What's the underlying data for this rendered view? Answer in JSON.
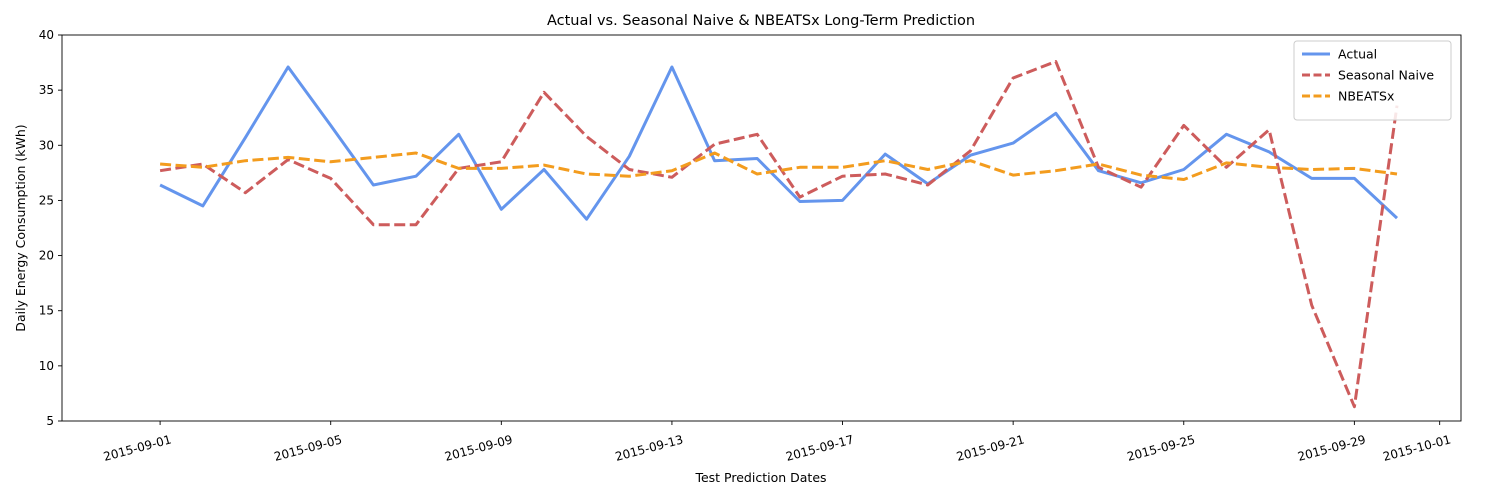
{
  "chart_data": {
    "type": "line",
    "title": "Actual vs. Seasonal Naive & NBEATSx Long-Term Prediction",
    "xlabel": "Test Prediction Dates",
    "ylabel": "Daily Energy Consumption (kWh)",
    "ylim": [
      5,
      40
    ],
    "yticks": [
      5,
      10,
      15,
      20,
      25,
      30,
      35,
      40
    ],
    "xlim": [
      "2015-08-29.7",
      "2015-10-01.5"
    ],
    "xticks": [
      "2015-09-01",
      "2015-09-05",
      "2015-09-09",
      "2015-09-13",
      "2015-09-17",
      "2015-09-21",
      "2015-09-25",
      "2015-09-29",
      "2015-10-01"
    ],
    "grid": false,
    "legend_position": "top-right",
    "x": [
      "2015-09-01",
      "2015-09-02",
      "2015-09-03",
      "2015-09-04",
      "2015-09-05",
      "2015-09-06",
      "2015-09-07",
      "2015-09-08",
      "2015-09-09",
      "2015-09-10",
      "2015-09-11",
      "2015-09-12",
      "2015-09-13",
      "2015-09-14",
      "2015-09-15",
      "2015-09-16",
      "2015-09-17",
      "2015-09-18",
      "2015-09-19",
      "2015-09-20",
      "2015-09-21",
      "2015-09-22",
      "2015-09-23",
      "2015-09-24",
      "2015-09-25",
      "2015-09-26",
      "2015-09-27",
      "2015-09-28",
      "2015-09-29",
      "2015-09-30"
    ],
    "series": [
      {
        "name": "Actual",
        "color": "#6495ED",
        "style": "solid",
        "values": [
          26.4,
          24.5,
          30.7,
          37.1,
          31.8,
          26.4,
          27.2,
          31.0,
          24.2,
          27.8,
          23.3,
          29.0,
          37.1,
          28.6,
          28.8,
          24.9,
          25.0,
          29.2,
          26.5,
          29.1,
          30.2,
          32.9,
          27.7,
          26.6,
          27.8,
          31.0,
          29.4,
          27.0,
          27.0,
          23.4
        ]
      },
      {
        "name": "Seasonal Naive",
        "color": "#CD5C5C",
        "style": "dashed",
        "values": [
          27.7,
          28.3,
          25.7,
          28.7,
          27.0,
          22.8,
          22.8,
          27.9,
          28.5,
          34.8,
          30.8,
          27.8,
          27.1,
          30.1,
          31.0,
          25.3,
          27.2,
          27.4,
          26.4,
          29.5,
          36.1,
          37.6,
          28.0,
          26.2,
          31.8,
          28.0,
          31.4,
          15.5,
          6.3,
          33.6
        ]
      },
      {
        "name": "NBEATSx",
        "color": "#F39C1E",
        "style": "dashed",
        "values": [
          28.3,
          28.0,
          28.6,
          28.9,
          28.5,
          28.9,
          29.3,
          27.9,
          27.9,
          28.2,
          27.4,
          27.2,
          27.7,
          29.3,
          27.4,
          28.0,
          28.0,
          28.6,
          27.8,
          28.6,
          27.3,
          27.7,
          28.3,
          27.3,
          26.9,
          28.4,
          28.0,
          27.8,
          27.9,
          27.4
        ]
      }
    ]
  }
}
